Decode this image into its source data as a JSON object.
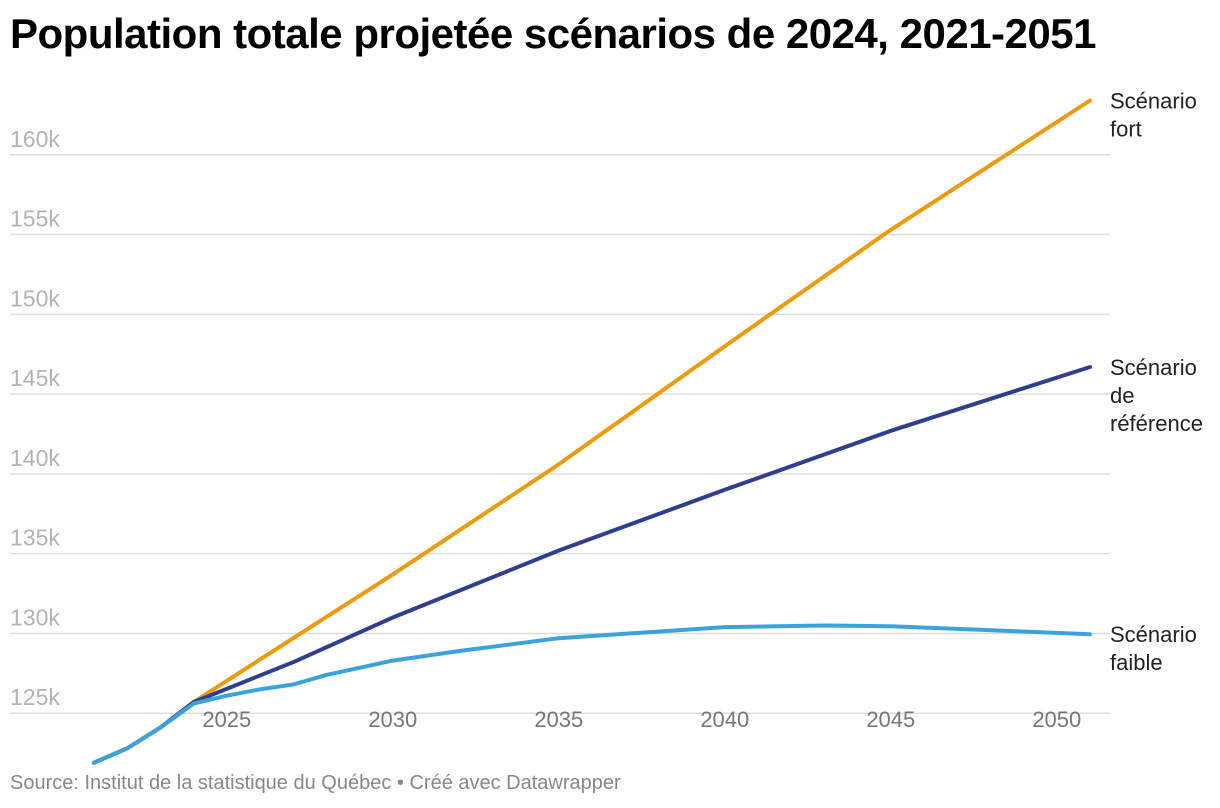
{
  "title": "Population totale projetée scénarios de 2024, 2021-2051",
  "source": {
    "prefix": "Source: ",
    "text": "Institut de la statistique du Québec",
    "separator": " • ",
    "credit": "Créé avec Datawrapper"
  },
  "chart_data": {
    "type": "line",
    "title": "Population totale projetée scénarios de 2024, 2021-2051",
    "xlabel": "",
    "ylabel": "",
    "xlim": [
      2021,
      2051
    ],
    "ylim": [
      120000,
      165000
    ],
    "x_ticks": [
      2025,
      2030,
      2035,
      2040,
      2045,
      2050
    ],
    "y_ticks": [
      {
        "value": 125000,
        "label": "125k"
      },
      {
        "value": 130000,
        "label": "130k"
      },
      {
        "value": 135000,
        "label": "135k"
      },
      {
        "value": 140000,
        "label": "140k"
      },
      {
        "value": 145000,
        "label": "145k"
      },
      {
        "value": 150000,
        "label": "150k"
      },
      {
        "value": 155000,
        "label": "155k"
      },
      {
        "value": 160000,
        "label": "160k"
      }
    ],
    "grid": true,
    "legend": "direct labels at line ends",
    "series": [
      {
        "name": "Scénario fort",
        "label_lines": [
          "Scénario",
          "fort"
        ],
        "color": "#ee9a0a",
        "x": [
          2021,
          2022,
          2023,
          2024,
          2027,
          2030,
          2035,
          2040,
          2045,
          2051
        ],
        "y": [
          121900,
          122800,
          124100,
          125700,
          129700,
          133700,
          140600,
          148000,
          155300,
          163400
        ]
      },
      {
        "name": "Scénario de référence",
        "label_lines": [
          "Scénario",
          "de",
          "référence"
        ],
        "color": "#2f3e8f",
        "x": [
          2021,
          2022,
          2023,
          2024,
          2027,
          2030,
          2035,
          2040,
          2045,
          2051
        ],
        "y": [
          121900,
          122800,
          124100,
          125700,
          128200,
          131000,
          135200,
          139000,
          142700,
          146700
        ]
      },
      {
        "name": "Scénario faible",
        "label_lines": [
          "Scénario",
          "faible"
        ],
        "color": "#3aa3dc",
        "x": [
          2021,
          2022,
          2023,
          2024,
          2025,
          2026,
          2027,
          2028,
          2030,
          2032,
          2035,
          2040,
          2043,
          2045,
          2051
        ],
        "y": [
          121900,
          122800,
          124100,
          125600,
          126100,
          126500,
          126800,
          127400,
          128300,
          128900,
          129700,
          130400,
          130500,
          130450,
          129950
        ]
      }
    ]
  }
}
